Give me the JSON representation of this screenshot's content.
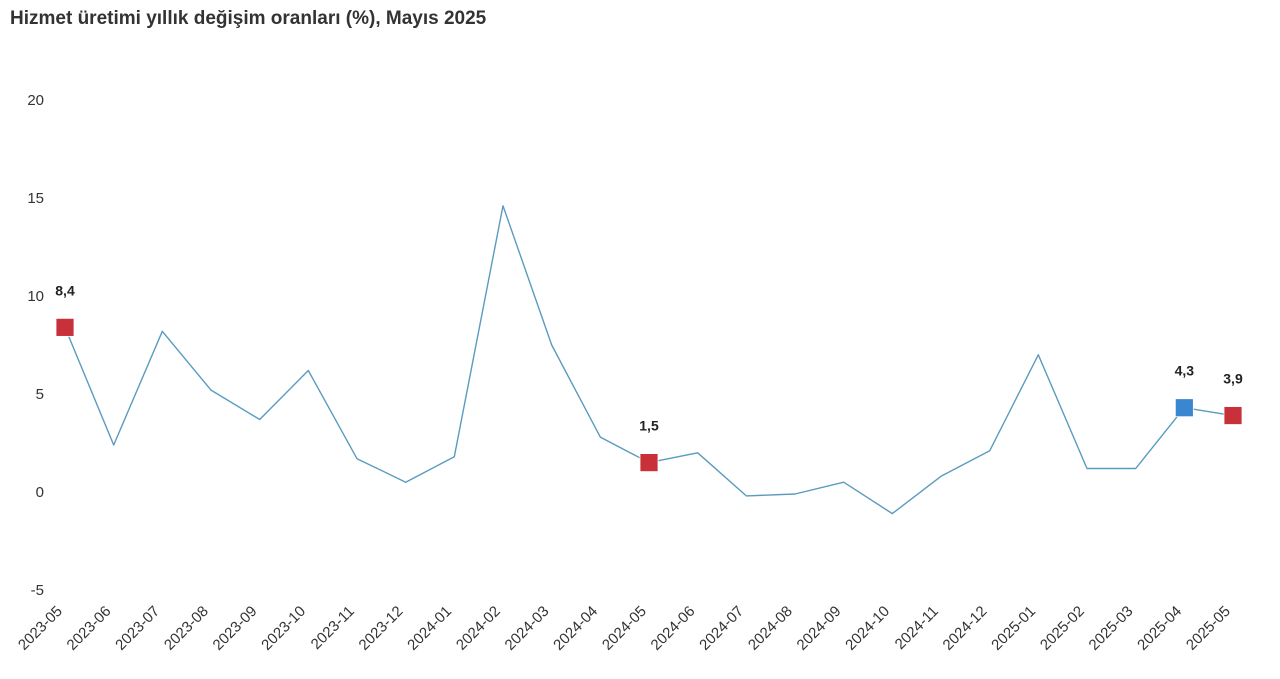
{
  "chart_data": {
    "type": "line",
    "title": "Hizmet üretimi yıllık değişim oranları (%), Mayıs 2025",
    "xlabel": "",
    "ylabel": "",
    "ylim": [
      -5,
      20
    ],
    "yticks": [
      20,
      15,
      10,
      5,
      0,
      -5
    ],
    "grid": false,
    "categories": [
      "2023-05",
      "2023-06",
      "2023-07",
      "2023-08",
      "2023-09",
      "2023-10",
      "2023-11",
      "2023-12",
      "2024-01",
      "2024-02",
      "2024-03",
      "2024-04",
      "2024-05",
      "2024-06",
      "2024-07",
      "2024-08",
      "2024-09",
      "2024-10",
      "2024-11",
      "2024-12",
      "2025-01",
      "2025-02",
      "2025-03",
      "2025-04",
      "2025-05"
    ],
    "series": [
      {
        "values": [
          8.4,
          2.4,
          8.2,
          5.2,
          3.7,
          6.2,
          1.7,
          0.5,
          1.8,
          14.6,
          7.5,
          2.8,
          1.5,
          2.0,
          -0.2,
          -0.1,
          0.5,
          -1.1,
          0.8,
          2.1,
          7.0,
          1.2,
          1.2,
          4.3,
          3.9
        ],
        "color": "#5a9bbf"
      }
    ],
    "highlighted_points": [
      {
        "index": 0,
        "label": "8,4",
        "color": "#c8303a"
      },
      {
        "index": 12,
        "label": "1,5",
        "color": "#c8303a"
      },
      {
        "index": 23,
        "label": "4,3",
        "color": "#3a86d0"
      },
      {
        "index": 24,
        "label": "3,9",
        "color": "#c8303a"
      }
    ]
  }
}
